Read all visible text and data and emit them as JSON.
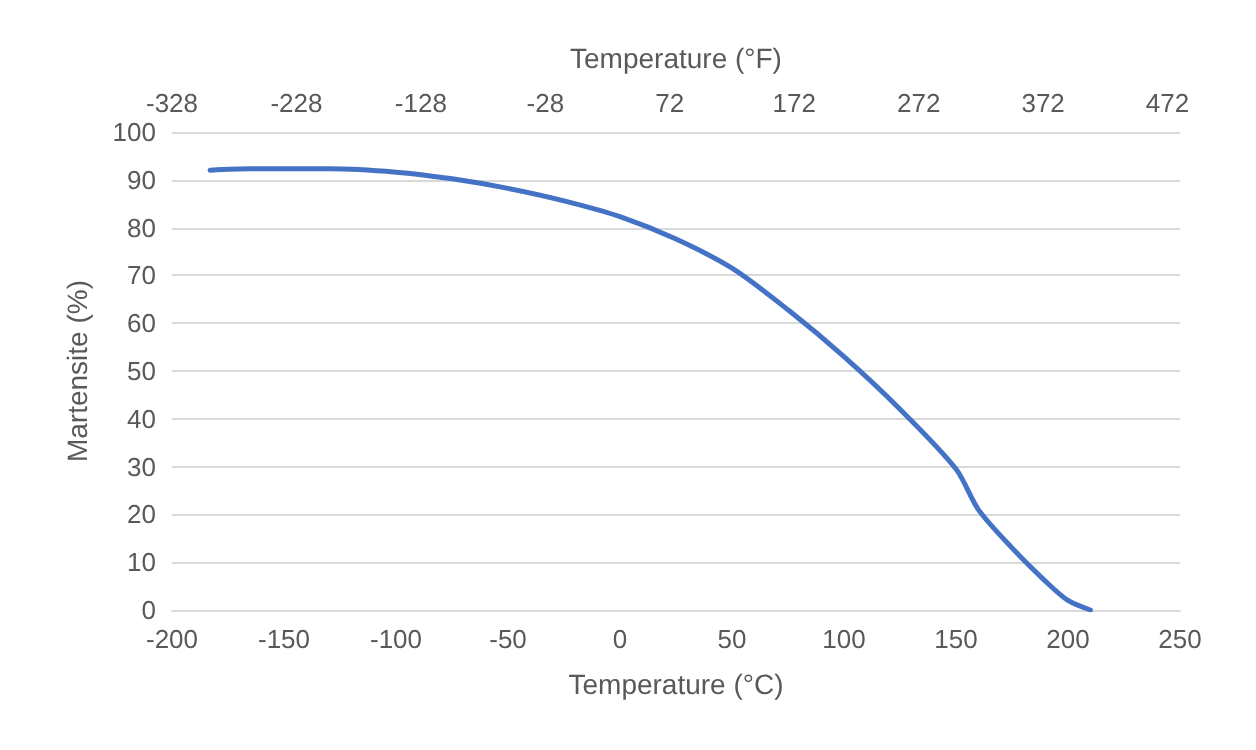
{
  "chart_data": {
    "type": "line",
    "xlabel": "Temperature (°C)",
    "x2label": "Temperature (°F)",
    "ylabel": "Martensite (%)",
    "x": [
      -183,
      -165,
      -150,
      -130,
      -100,
      -75,
      -50,
      -25,
      0,
      25,
      50,
      75,
      100,
      125,
      150,
      160,
      175,
      190,
      200,
      210
    ],
    "series": [
      {
        "color": "#4472c4",
        "values": [
          92,
          92.3,
          92.3,
          92.3,
          91.6,
          90.2,
          88.2,
          85.6,
          82.3,
          77.6,
          71.5,
          62.8,
          53,
          42,
          29.5,
          21,
          13,
          6,
          2,
          0
        ]
      }
    ],
    "xlim": [
      -200,
      250
    ],
    "xticks": [
      -200,
      -150,
      -100,
      -50,
      0,
      50,
      100,
      150,
      200,
      250
    ],
    "x2lim": [
      -328,
      482
    ],
    "x2ticks": [
      -328,
      -228,
      -128,
      -28,
      72,
      172,
      272,
      372,
      472
    ],
    "ylim": [
      0,
      100
    ],
    "yticks": [
      0,
      10,
      20,
      30,
      40,
      50,
      60,
      70,
      80,
      90,
      100
    ],
    "grid": "y",
    "marker": "none",
    "line_style": "solid"
  }
}
